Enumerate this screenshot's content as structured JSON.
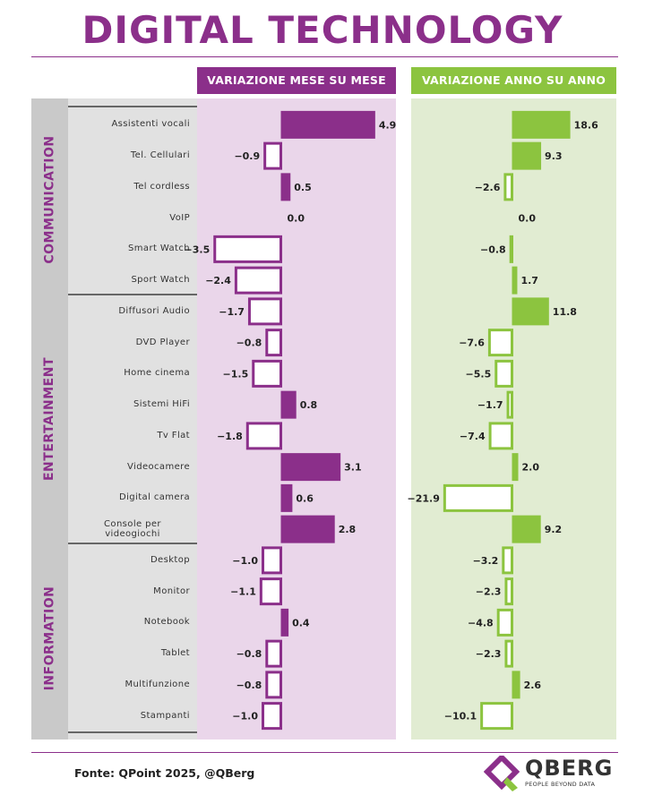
{
  "title": "DIGITAL TECHNOLOGY",
  "colors": {
    "purple": "#8b2f8a",
    "purple_bg": "#ead6ea",
    "green": "#8cc43f",
    "green_bg": "#e1ecd2",
    "label_bg": "#e1e1e1",
    "category_bg": "#c9c9c9"
  },
  "headers": {
    "mom": "VARIAZIONE MESE SU MESE",
    "yoy": "VARIAZIONE ANNO SU ANNO"
  },
  "groups": [
    "COMMUNICATION",
    "ENTERTAINMENT",
    "INFORMATION"
  ],
  "chart_data": {
    "type": "bar",
    "orientation": "horizontal",
    "categories": [
      "Assistenti vocali",
      "Tel. Cellulari",
      "Tel cordless",
      "VoIP",
      "Smart Watch",
      "Sport Watch",
      "Diffusori Audio",
      "DVD Player",
      "Home cinema",
      "Sistemi HiFi",
      "Tv Flat",
      "Videocamere",
      "Digital camera",
      "Console per videogiochi",
      "Desktop",
      "Monitor",
      "Notebook",
      "Tablet",
      "Multifunzione",
      "Stampanti"
    ],
    "category_groups": [
      "COMMUNICATION",
      "COMMUNICATION",
      "COMMUNICATION",
      "COMMUNICATION",
      "COMMUNICATION",
      "COMMUNICATION",
      "ENTERTAINMENT",
      "ENTERTAINMENT",
      "ENTERTAINMENT",
      "ENTERTAINMENT",
      "ENTERTAINMENT",
      "ENTERTAINMENT",
      "ENTERTAINMENT",
      "ENTERTAINMENT",
      "INFORMATION",
      "INFORMATION",
      "INFORMATION",
      "INFORMATION",
      "INFORMATION",
      "INFORMATION"
    ],
    "series": [
      {
        "name": "VARIAZIONE MESE SU MESE",
        "values": [
          4.9,
          -0.9,
          0.5,
          0.0,
          -3.5,
          -2.4,
          -1.7,
          -0.8,
          -1.5,
          0.8,
          -1.8,
          3.1,
          0.6,
          2.8,
          -1.0,
          -1.1,
          0.4,
          -0.8,
          -0.8,
          -1.0
        ],
        "labels": [
          "4.9",
          "−0.9",
          "0.5",
          "0.0",
          "−3.5",
          "−2.4",
          "−1.7",
          "−0.8",
          "−1.5",
          "0.8",
          "−1.8",
          "3.1",
          "0.6",
          "2.8",
          "−1.0",
          "−1.1",
          "0.4",
          "−0.8",
          "−0.8",
          "−1.0"
        ]
      },
      {
        "name": "VARIAZIONE ANNO SU ANNO",
        "values": [
          18.6,
          9.3,
          -2.6,
          0.0,
          -0.8,
          1.7,
          11.8,
          -7.6,
          -5.5,
          -1.7,
          -7.4,
          2.0,
          -21.9,
          9.2,
          -3.2,
          -2.3,
          -4.8,
          -2.3,
          2.6,
          -10.1
        ],
        "labels": [
          "18.6",
          "9.3",
          "−2.6",
          "0.0",
          "−0.8",
          "1.7",
          "11.8",
          "−7.6",
          "−5.5",
          "−1.7",
          "−7.4",
          "2.0",
          "−21.9",
          "9.2",
          "−3.2",
          "−2.3",
          "−4.8",
          "−2.3",
          "2.6",
          "−10.1"
        ]
      }
    ]
  },
  "source": "Fonte: QPoint 2025, @QBerg",
  "logo": {
    "name": "QBERG",
    "tagline": "PEOPLE BEYOND DATA"
  }
}
